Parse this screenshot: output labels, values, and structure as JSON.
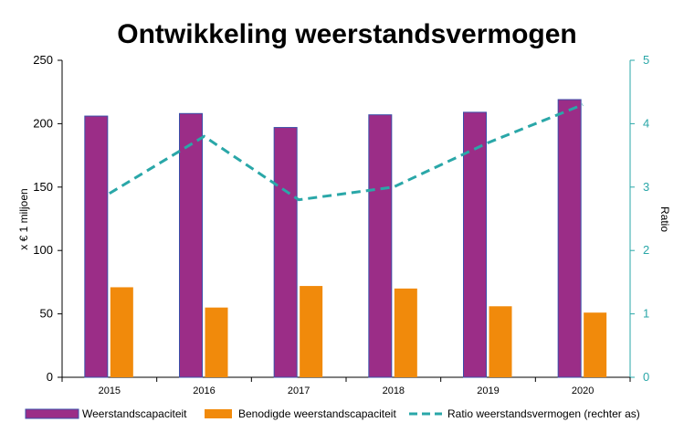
{
  "chart_data": {
    "type": "bar",
    "title": "Ontwikkeling weerstandsvermogen",
    "ylabel": "x € 1 miljoen",
    "y2label": "Ratio",
    "categories": [
      "2015",
      "2016",
      "2017",
      "2018",
      "2019",
      "2020"
    ],
    "ylim": [
      0,
      250
    ],
    "yticks": [
      0,
      50,
      100,
      150,
      200,
      250
    ],
    "y2lim": [
      0,
      5
    ],
    "y2ticks": [
      0,
      1,
      2,
      3,
      4,
      5
    ],
    "grid": false,
    "legend_position": "bottom",
    "series": [
      {
        "name": "Weerstandscapaciteit",
        "type": "bar",
        "axis": "left",
        "color": "#9B2D87",
        "values": [
          206,
          208,
          197,
          207,
          209,
          219
        ]
      },
      {
        "name": "Benodigde weerstandscapaciteit",
        "type": "bar",
        "axis": "left",
        "color": "#F18A0B",
        "values": [
          71,
          55,
          72,
          70,
          56,
          51
        ]
      },
      {
        "name": "Ratio weerstandsvermogen (rechter as)",
        "type": "line",
        "style": "dashed",
        "axis": "right",
        "color": "#2AA7A8",
        "values": [
          2.9,
          3.8,
          2.8,
          3.0,
          3.7,
          4.3
        ]
      }
    ]
  }
}
